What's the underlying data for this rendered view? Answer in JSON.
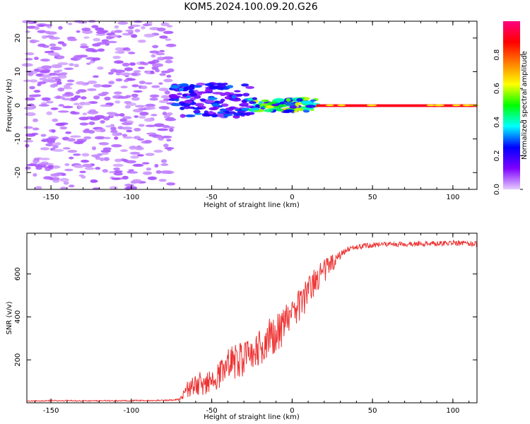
{
  "title": "KOM5.2024.100.09.20.G26",
  "chart_data": [
    {
      "type": "heatmap",
      "xlabel": "Height of straight line (km)",
      "ylabel": "Frequency (Hz)",
      "xlim": [
        -165,
        115
      ],
      "ylim": [
        -25,
        25
      ],
      "xticks": [
        -150,
        -100,
        -50,
        0,
        50,
        100
      ],
      "yticks": [
        -20,
        -10,
        0,
        10,
        20
      ],
      "colorbar": {
        "label": "Normalized spectral amplitude",
        "range": [
          0,
          1
        ],
        "ticks": [
          "0.0",
          "0.2",
          "0.4",
          "0.6",
          "0.8"
        ],
        "colormap": [
          "#e6ccff",
          "#7f00ff",
          "#0000ff",
          "#00ffff",
          "#00ff00",
          "#ffff00",
          "#ff7f00",
          "#ff0000",
          "#ff0080"
        ]
      },
      "regions": [
        {
          "x": [
            -165,
            -75
          ],
          "freq_spread": 25,
          "amplitude": 0.05,
          "note": "scattered noise"
        },
        {
          "x": [
            -75,
            -25
          ],
          "freq_spread": 5,
          "amplitude": 0.2,
          "note": "onset cluster"
        },
        {
          "x": [
            -25,
            15
          ],
          "freq_spread": 2,
          "amplitude": 0.4,
          "note": "converging signal"
        },
        {
          "x": [
            15,
            115
          ],
          "freq_spread": 0.3,
          "amplitude": 0.9,
          "note": "steady line at 0 Hz"
        }
      ]
    },
    {
      "type": "line",
      "xlabel": "Height of straight line (km)",
      "ylabel": "SNR (v/v)",
      "xlim": [
        -165,
        115
      ],
      "ylim": [
        0,
        790
      ],
      "xticks": [
        -150,
        -100,
        -50,
        0,
        50,
        100
      ],
      "yticks": [
        200,
        400,
        600
      ],
      "color": "#ee3333",
      "series": [
        {
          "x": [
            -165,
            -150,
            -125,
            -100,
            -85,
            -75,
            -70,
            -65,
            -60,
            -55,
            -50,
            -45,
            -40,
            -35,
            -30,
            -25,
            -20,
            -15,
            -10,
            -5,
            0,
            5,
            10,
            15,
            20,
            25,
            30,
            35,
            40,
            50,
            60,
            70,
            80,
            90,
            100,
            110,
            115
          ],
          "values": [
            8,
            10,
            9,
            10,
            11,
            12,
            15,
            60,
            80,
            95,
            110,
            150,
            170,
            190,
            200,
            220,
            260,
            300,
            320,
            360,
            420,
            460,
            520,
            580,
            620,
            650,
            690,
            715,
            725,
            735,
            738,
            740,
            740,
            742,
            745,
            742,
            740
          ],
          "noise": [
            2,
            3,
            3,
            3,
            3,
            3,
            5,
            40,
            50,
            60,
            70,
            80,
            80,
            90,
            80,
            80,
            90,
            90,
            90,
            90,
            80,
            80,
            80,
            70,
            60,
            40,
            20,
            15,
            12,
            12,
            12,
            12,
            12,
            12,
            14,
            12,
            12
          ]
        }
      ]
    }
  ]
}
